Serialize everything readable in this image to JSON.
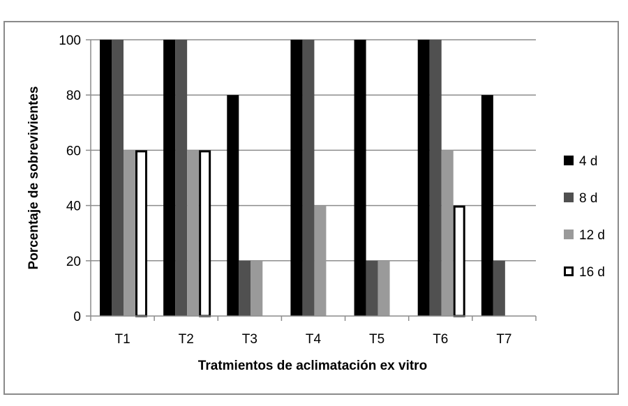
{
  "chart_data": {
    "type": "bar",
    "categories": [
      "T1",
      "T2",
      "T3",
      "T4",
      "T5",
      "T6",
      "T7"
    ],
    "series": [
      {
        "name": "4 d",
        "color": "#000000",
        "values": [
          100,
          100,
          80,
          100,
          100,
          100,
          80
        ]
      },
      {
        "name": "8 d",
        "color": "#505050",
        "values": [
          100,
          100,
          20,
          100,
          20,
          100,
          20
        ]
      },
      {
        "name": "12 d",
        "color": "#9a9a9a",
        "values": [
          60,
          60,
          20,
          40,
          20,
          60,
          0
        ]
      },
      {
        "name": "16 d",
        "color": "#ffffff",
        "values": [
          60,
          60,
          0,
          0,
          0,
          40,
          0
        ]
      }
    ],
    "title": "",
    "xlabel": "Tratmientos de aclimatación ex vitro",
    "ylabel": "Porcentaje de sobrevivientes",
    "ylim": [
      0,
      100
    ],
    "yticks": [
      0,
      20,
      40,
      60,
      80,
      100
    ],
    "grid": true,
    "legend_position": "right"
  }
}
